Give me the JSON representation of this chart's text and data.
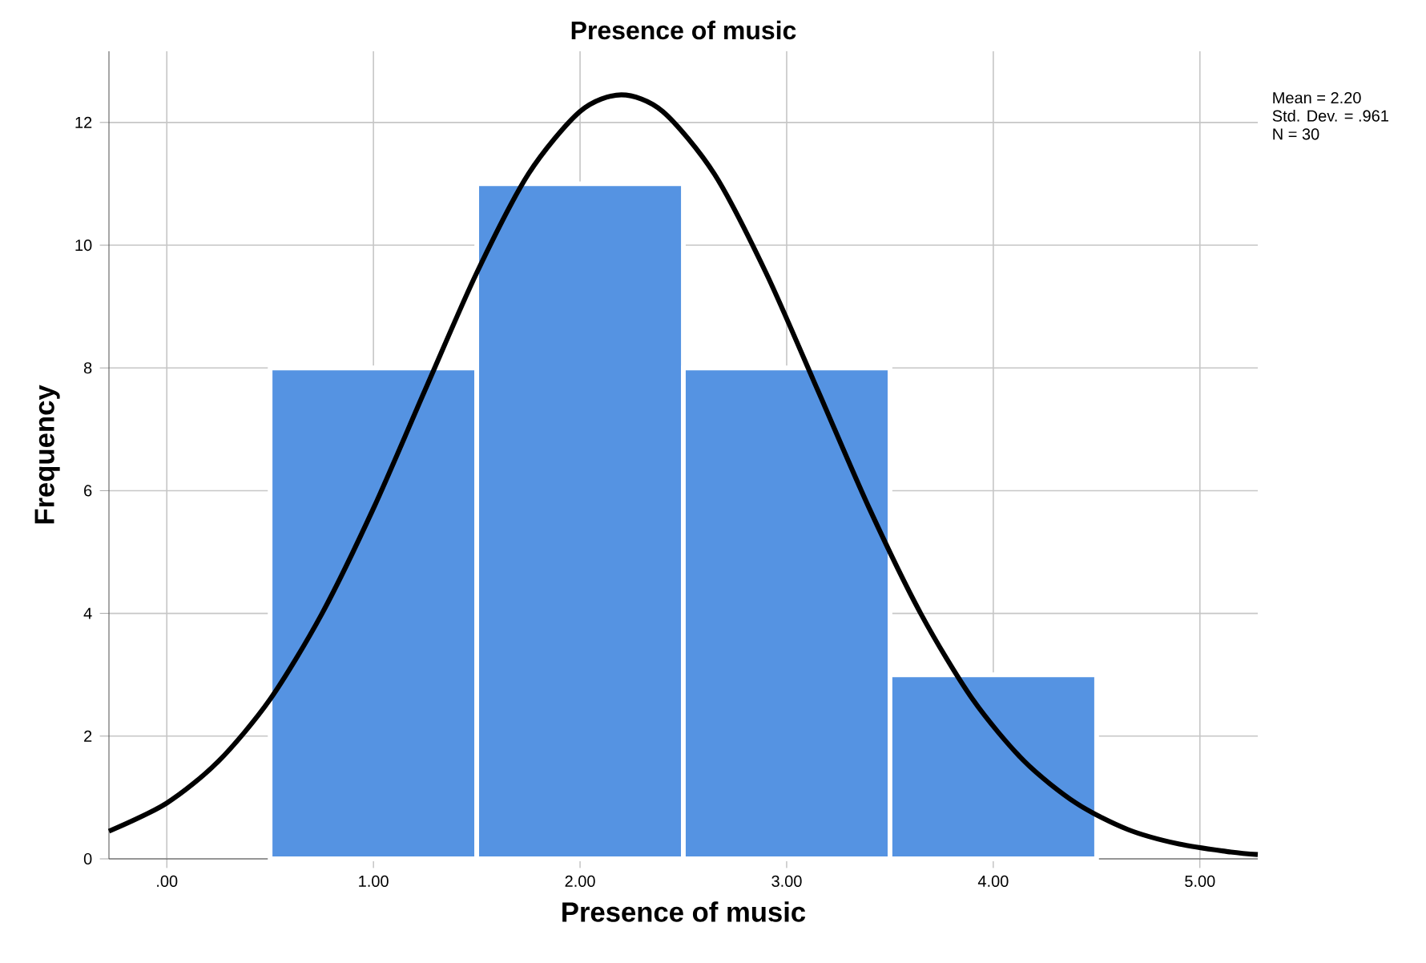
{
  "chart_data": {
    "type": "histogram",
    "title": "Presence of music",
    "xlabel": "Presence of music",
    "ylabel": "Frequency",
    "bins": [
      0.5,
      1.5,
      2.5,
      3.5,
      4.5
    ],
    "series": [
      {
        "color": "#5593e2",
        "values": [
          8,
          11,
          8,
          3
        ]
      },
      {
        "type": "line",
        "color": "#000000",
        "x": [
          -0.28,
          0,
          0.25,
          0.5,
          0.75,
          1.0,
          1.25,
          1.5,
          1.75,
          2.0,
          2.2,
          2.4,
          2.65,
          2.9,
          3.15,
          3.4,
          3.65,
          3.9,
          4.15,
          4.4,
          4.65,
          4.9,
          5.15,
          5.28
        ],
        "values": [
          0.45,
          0.91,
          1.59,
          2.6,
          3.99,
          5.71,
          7.64,
          9.55,
          11.16,
          12.18,
          12.45,
          12.18,
          11.16,
          9.55,
          7.64,
          5.71,
          3.99,
          2.6,
          1.59,
          0.91,
          0.48,
          0.24,
          0.11,
          0.07
        ]
      }
    ],
    "xlim": [
      -0.28,
      5.28
    ],
    "ylim": [
      0,
      13.16
    ],
    "xticks": [
      {
        "value": 0,
        "label": ".00"
      },
      {
        "value": 1,
        "label": "1.00"
      },
      {
        "value": 2,
        "label": "2.00"
      },
      {
        "value": 3,
        "label": "3.00"
      },
      {
        "value": 4,
        "label": "4.00"
      },
      {
        "value": 5,
        "label": "5.00"
      }
    ],
    "yticks": [
      0,
      2,
      4,
      6,
      8,
      10,
      12
    ],
    "grid": true,
    "annotations": [
      "Mean = 2.20",
      "Std. Dev. = .961",
      "N = 30"
    ]
  }
}
